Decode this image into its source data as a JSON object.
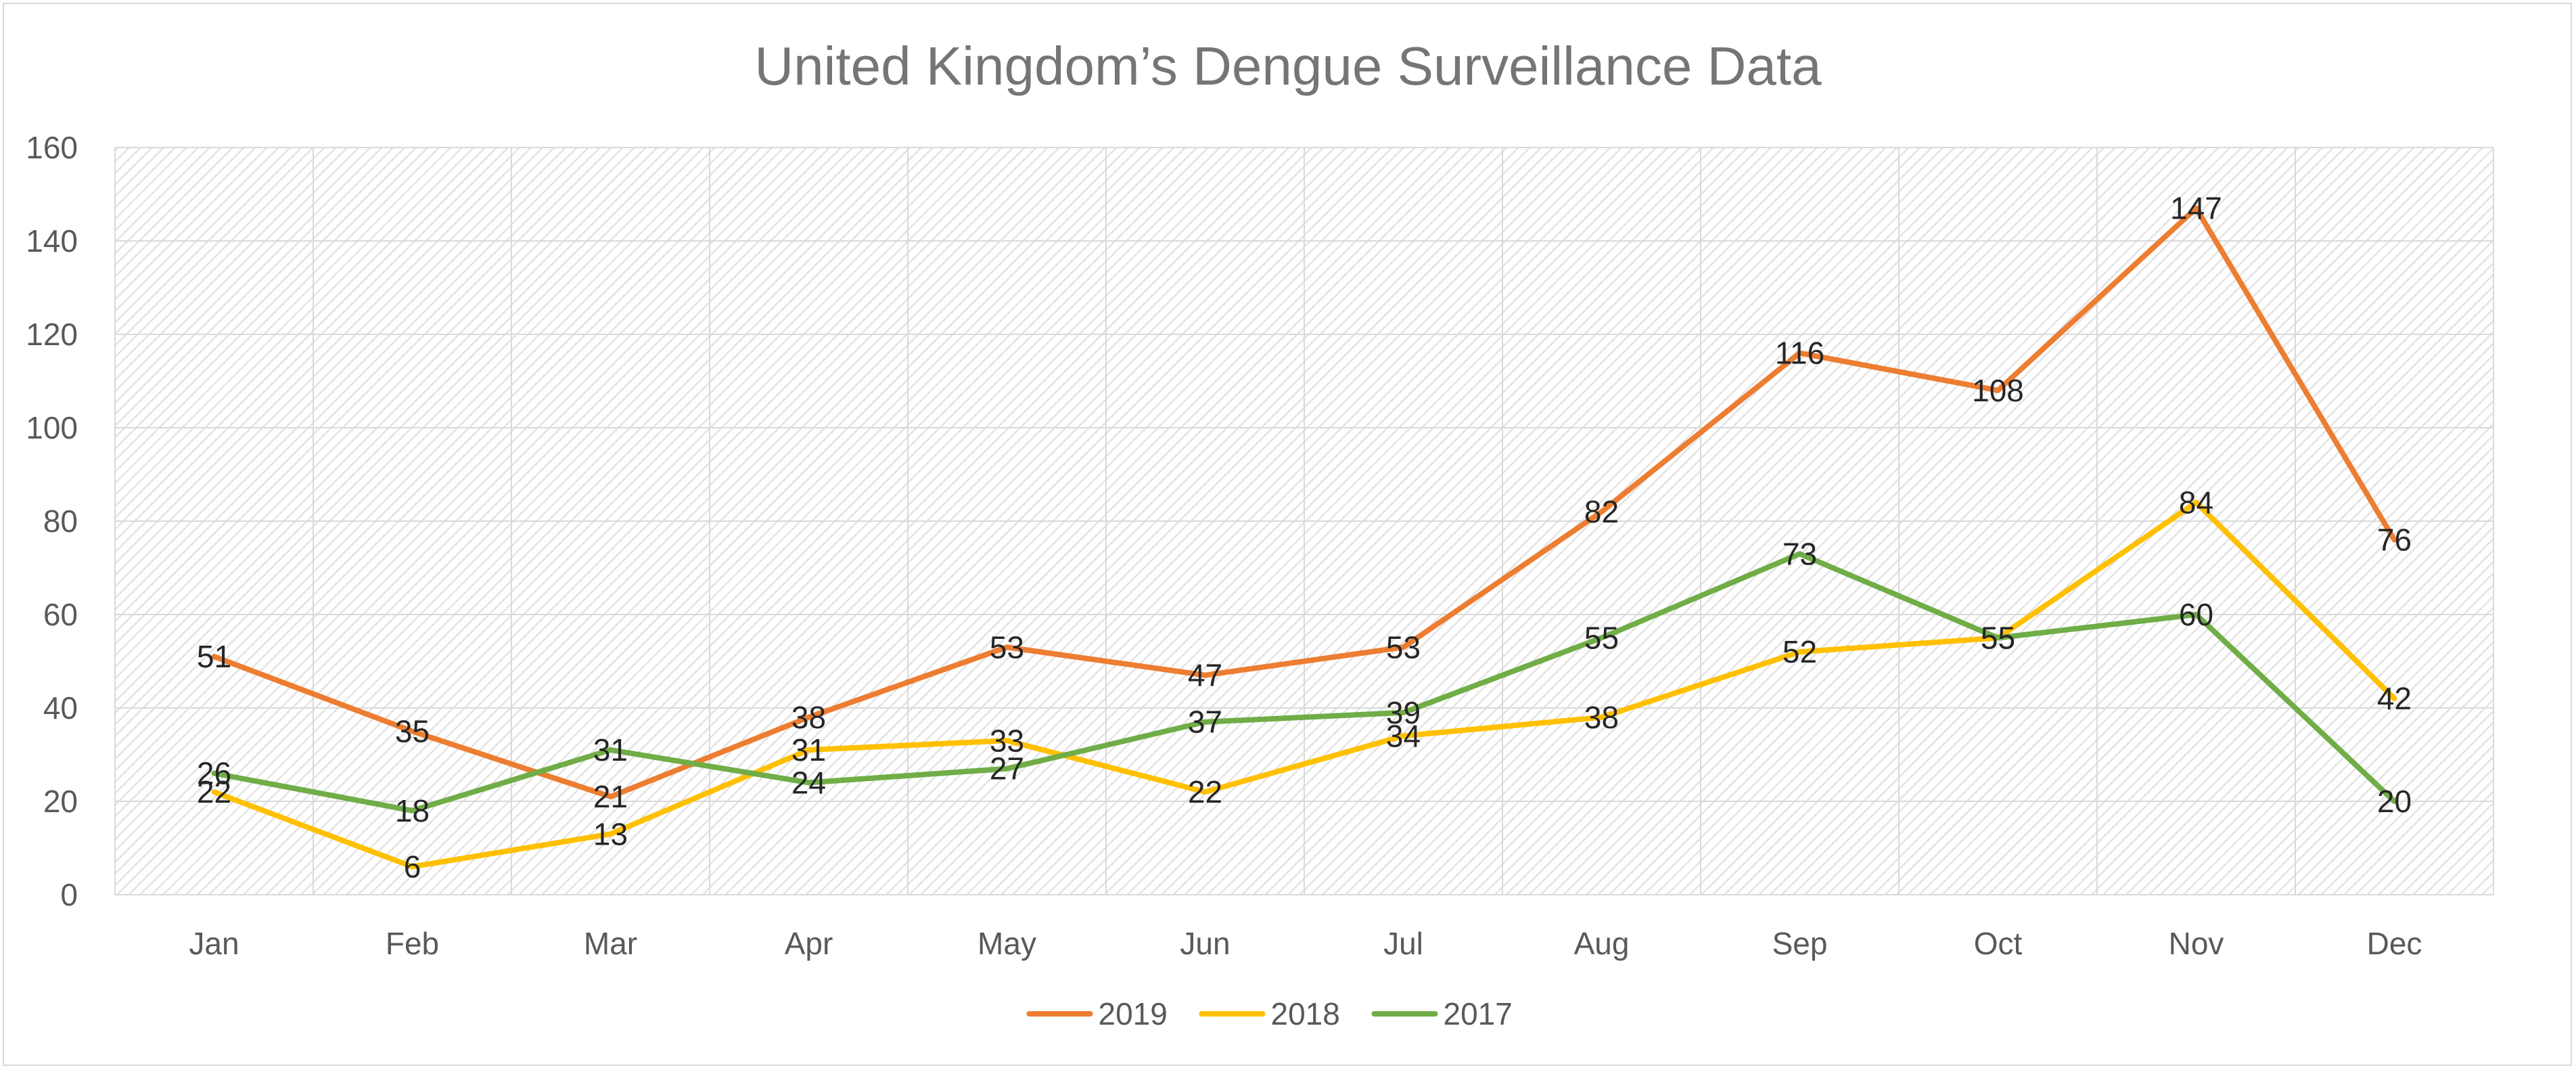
{
  "chart_data": {
    "type": "line",
    "title": "United Kingdom’s Dengue Surveillance Data",
    "xlabel": "",
    "ylabel": "",
    "categories": [
      "Jan",
      "Feb",
      "Mar",
      "Apr",
      "May",
      "Jun",
      "Jul",
      "Aug",
      "Sep",
      "Oct",
      "Nov",
      "Dec"
    ],
    "ylim": [
      0,
      160
    ],
    "yticks": [
      0,
      20,
      40,
      60,
      80,
      100,
      120,
      140,
      160
    ],
    "grid": true,
    "legend_position": "bottom",
    "series": [
      {
        "name": "2019",
        "color": "#ed7d31",
        "values": [
          51,
          35,
          21,
          38,
          53,
          47,
          53,
          82,
          116,
          108,
          147,
          76
        ]
      },
      {
        "name": "2018",
        "color": "#ffc000",
        "values": [
          22,
          6,
          13,
          31,
          33,
          22,
          34,
          38,
          52,
          55,
          84,
          42
        ]
      },
      {
        "name": "2017",
        "color": "#70ad47",
        "values": [
          26,
          18,
          31,
          24,
          27,
          37,
          39,
          55,
          73,
          55,
          60,
          20
        ]
      }
    ]
  }
}
